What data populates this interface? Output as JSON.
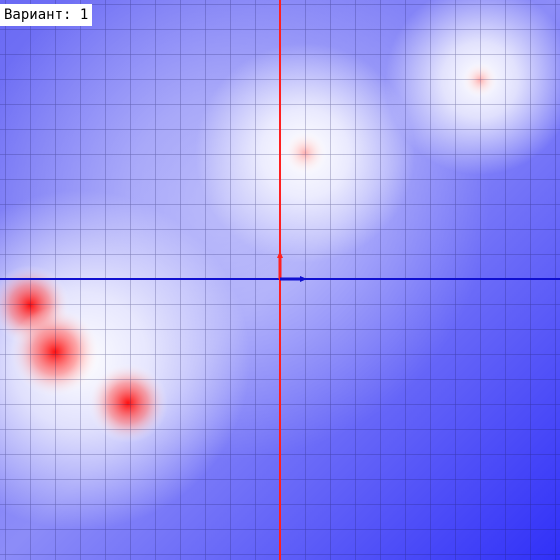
{
  "variant_label": "Вариант: 1"
}
